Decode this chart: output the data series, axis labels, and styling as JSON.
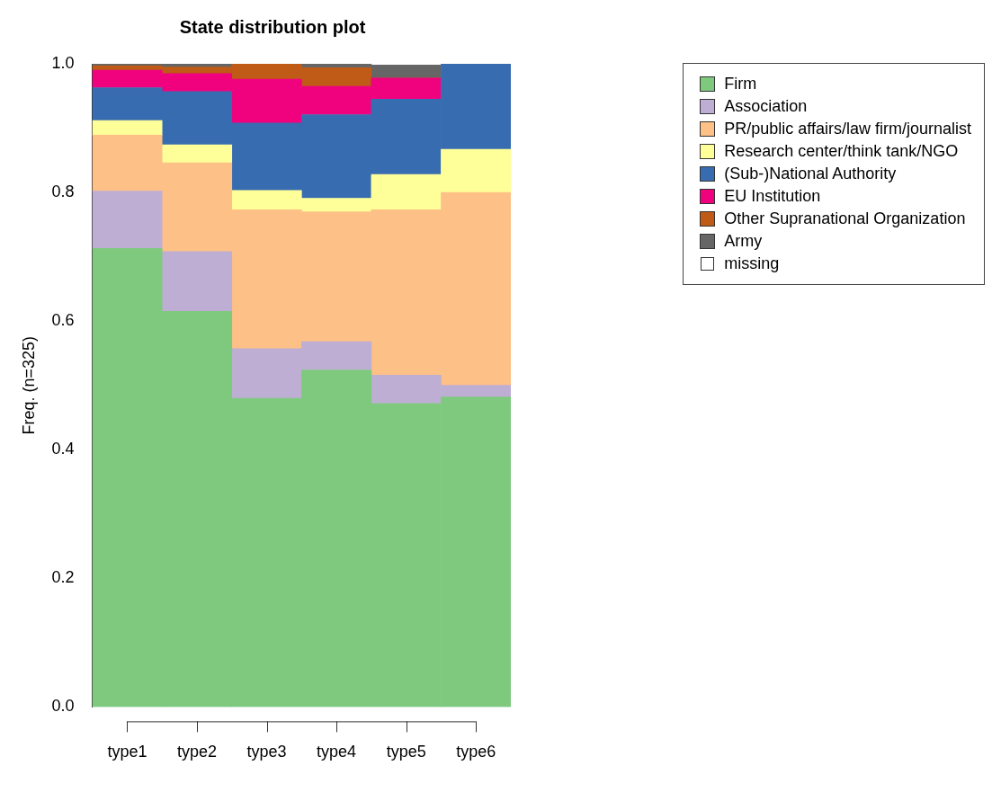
{
  "chart_data": {
    "type": "bar",
    "title": "State distribution plot",
    "ylabel": "Freq. (n=325)",
    "stacked": true,
    "legend": "top right",
    "grid": false,
    "categories": [
      "type1",
      "type2",
      "type3",
      "type4",
      "type5",
      "type6"
    ],
    "ylim": [
      0,
      1
    ],
    "yticks": [
      {
        "value": 0,
        "label": "0.0"
      },
      {
        "value": 0.2,
        "label": "0.2"
      },
      {
        "value": 0.4,
        "label": "0.4"
      },
      {
        "value": 0.6,
        "label": "0.6"
      },
      {
        "value": 0.8,
        "label": "0.8"
      },
      {
        "value": 1,
        "label": "1.0"
      }
    ],
    "series": [
      {
        "name": "Firm",
        "color": "#7fc97f",
        "values": [
          0.713,
          0.615,
          0.48,
          0.524,
          0.472,
          0.482
        ]
      },
      {
        "name": "Association",
        "color": "#beaed4",
        "values": [
          0.089,
          0.093,
          0.077,
          0.044,
          0.044,
          0.018
        ]
      },
      {
        "name": "PR/public affairs/law firm/journalist",
        "color": "#fdc086",
        "values": [
          0.087,
          0.138,
          0.216,
          0.202,
          0.257,
          0.3
        ]
      },
      {
        "name": "Research center/think tank/NGO",
        "color": "#ffff99",
        "values": [
          0.023,
          0.028,
          0.03,
          0.021,
          0.055,
          0.067
        ]
      },
      {
        "name": "(Sub-)National Authority",
        "color": "#386cb0",
        "values": [
          0.051,
          0.083,
          0.105,
          0.13,
          0.117,
          0.133
        ]
      },
      {
        "name": "EU Institution",
        "color": "#f0027f",
        "values": [
          0.027,
          0.028,
          0.068,
          0.044,
          0.033,
          0
        ]
      },
      {
        "name": "Other Supranational Organization",
        "color": "#bf5b17",
        "values": [
          0.007,
          0.01,
          0.024,
          0.029,
          0,
          0
        ]
      },
      {
        "name": "Army",
        "color": "#666666",
        "values": [
          0.003,
          0.005,
          0,
          0.006,
          0.02,
          0
        ]
      },
      {
        "name": "missing",
        "color": "#ffffff",
        "values": [
          0,
          0,
          0,
          0,
          0,
          0
        ]
      }
    ]
  }
}
